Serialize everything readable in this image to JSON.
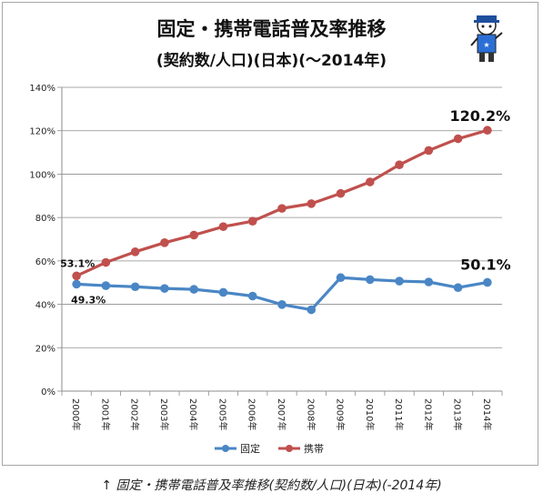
{
  "title": "固定・携帯電話普及率推移",
  "subtitle": "(契約数/人口)(日本)(〜2014年)",
  "caption": "↑ 固定・携帯電話普及率推移(契約数/人口)(日本)(-2014年)",
  "chart_data": {
    "type": "line",
    "categories": [
      "2000年",
      "2001年",
      "2002年",
      "2003年",
      "2004年",
      "2005年",
      "2006年",
      "2007年",
      "2008年",
      "2009年",
      "2010年",
      "2011年",
      "2012年",
      "2013年",
      "2014年"
    ],
    "series": [
      {
        "name": "固定",
        "color": "#4a86c5",
        "values": [
          49.3,
          48.6,
          48.1,
          47.3,
          46.9,
          45.5,
          43.8,
          39.9,
          37.5,
          52.3,
          51.4,
          50.7,
          50.3,
          47.7,
          50.1
        ]
      },
      {
        "name": "携帯",
        "color": "#c0504d",
        "values": [
          53.1,
          59.3,
          64.2,
          68.4,
          71.9,
          75.8,
          78.3,
          84.2,
          86.4,
          91.1,
          96.4,
          104.3,
          110.9,
          116.3,
          120.2
        ]
      }
    ],
    "ylim": [
      0,
      140
    ],
    "yticks": [
      "0%",
      "20%",
      "40%",
      "60%",
      "80%",
      "100%",
      "120%",
      "140%"
    ],
    "annotations": {
      "keitai_start": "53.1%",
      "kotei_start": "49.3%",
      "keitai_end": "120.2%",
      "kotei_end": "50.1%"
    },
    "grid": true,
    "legend_position": "bottom"
  }
}
